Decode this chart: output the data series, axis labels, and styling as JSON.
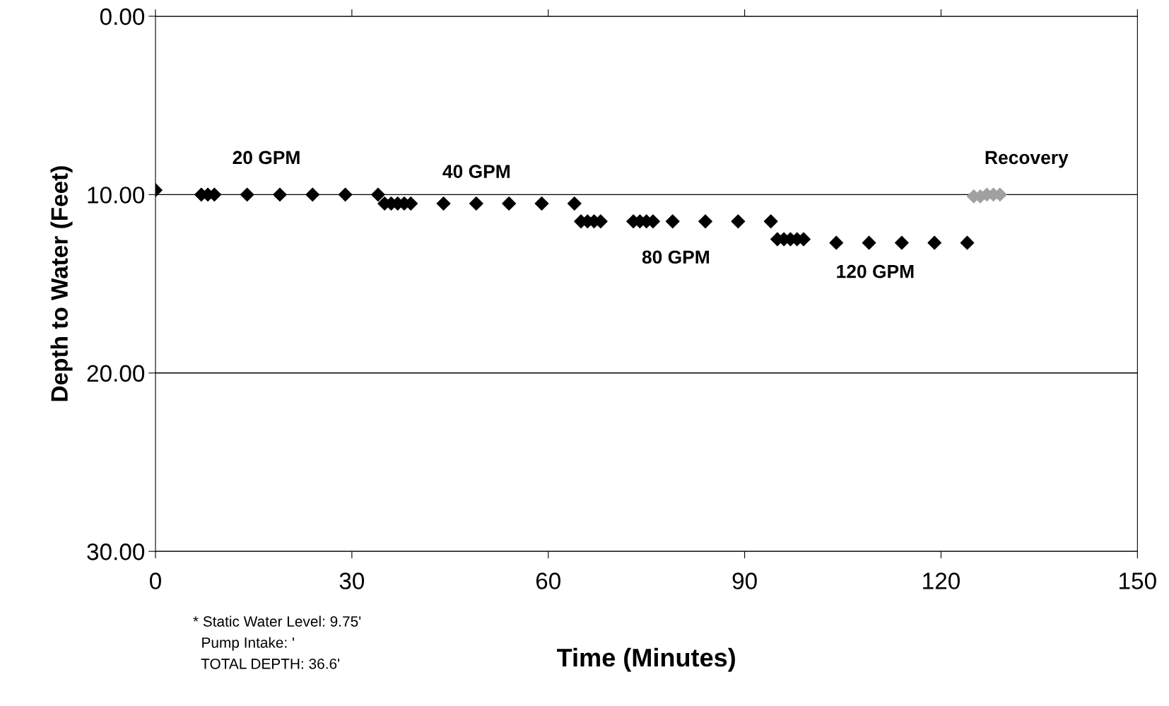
{
  "chart_data": {
    "type": "scatter",
    "xlabel": "Time (Minutes)",
    "ylabel": "Depth to Water (Feet)",
    "xlim": [
      0,
      150
    ],
    "xticks": [
      0,
      30,
      60,
      90,
      120,
      150
    ],
    "ylim": [
      30,
      0
    ],
    "yticks": [
      {
        "value": 0,
        "label": "0.00"
      },
      {
        "value": 10,
        "label": "10.00"
      },
      {
        "value": 20,
        "label": "20.00"
      },
      {
        "value": 30,
        "label": "30.00"
      }
    ],
    "grid": "y",
    "marker": "diamond",
    "series": [
      {
        "color": "#000000",
        "x": [
          0,
          7,
          8,
          9,
          14,
          19,
          24,
          29,
          34,
          35,
          36,
          37,
          38,
          39,
          44,
          49,
          54,
          59,
          64,
          65,
          66,
          67,
          68,
          73,
          74,
          75,
          76,
          79,
          84,
          89,
          94,
          95,
          96,
          97,
          98,
          99,
          104,
          109,
          114,
          119,
          124
        ],
        "values": [
          9.75,
          10.0,
          10.0,
          10.0,
          10.0,
          10.0,
          10.0,
          10.0,
          10.0,
          10.5,
          10.5,
          10.5,
          10.5,
          10.5,
          10.5,
          10.5,
          10.5,
          10.5,
          10.5,
          11.5,
          11.5,
          11.5,
          11.5,
          11.5,
          11.5,
          11.5,
          11.5,
          11.5,
          11.5,
          11.5,
          11.5,
          12.5,
          12.5,
          12.5,
          12.5,
          12.5,
          12.7,
          12.7,
          12.7,
          12.7,
          12.7
        ]
      },
      {
        "color": "#a0a0a0",
        "x": [
          125,
          126,
          127,
          128,
          129
        ],
        "values": [
          10.1,
          10.1,
          10.0,
          10.0,
          10.0
        ]
      }
    ],
    "annotations": [
      "20 GPM",
      "40 GPM",
      "80 GPM",
      "120 GPM",
      "Recovery",
      "* Static Water Level: 9.75'",
      "  Pump Intake: '",
      "  TOTAL DEPTH: 36.6'"
    ]
  }
}
